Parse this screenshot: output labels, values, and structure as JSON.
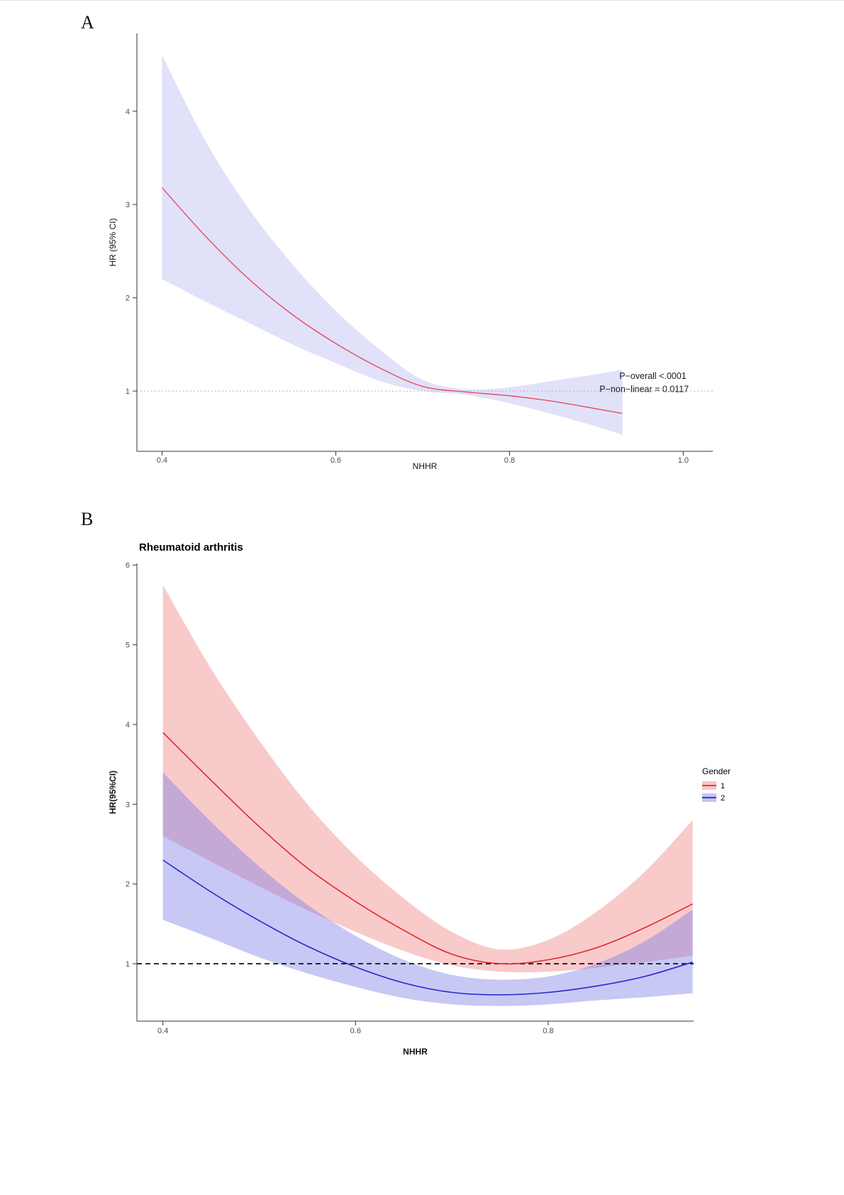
{
  "panels": [
    {
      "label": "A"
    },
    {
      "label": "B"
    }
  ],
  "chart_data": [
    {
      "id": "panel-a",
      "type": "line",
      "title": "",
      "xlabel": "NHHR",
      "ylabel": "HR (95% CI)",
      "xlim": [
        0.371,
        1.034
      ],
      "ylim": [
        0.354,
        4.835
      ],
      "xticks": [
        0.4,
        0.6,
        0.8,
        1.0
      ],
      "yticks": [
        1,
        2,
        3,
        4
      ],
      "grid": false,
      "ref_line": {
        "y": 1,
        "style": "dotted",
        "color": "#b5b5b5"
      },
      "x": [
        0.4,
        0.45,
        0.5,
        0.55,
        0.6,
        0.65,
        0.7,
        0.75,
        0.8,
        0.85,
        0.9,
        0.93
      ],
      "series": [
        {
          "name": "hr",
          "label": "HR",
          "color": "#e34257",
          "band_color": "#9a9aec",
          "band_opacity": 0.3,
          "values": [
            3.18,
            2.66,
            2.2,
            1.82,
            1.51,
            1.25,
            1.05,
            0.99,
            0.95,
            0.89,
            0.81,
            0.76
          ],
          "upper": [
            4.6,
            3.68,
            2.95,
            2.36,
            1.86,
            1.45,
            1.12,
            1.02,
            1.04,
            1.11,
            1.18,
            1.23
          ],
          "lower": [
            2.2,
            1.96,
            1.73,
            1.5,
            1.3,
            1.11,
            1.0,
            0.96,
            0.87,
            0.75,
            0.62,
            0.53
          ]
        }
      ],
      "annotations": [
        {
          "text": "P−overall <.0001",
          "x": 0.965,
          "y": 1.13
        },
        {
          "text": "P−non−linear = 0.0117",
          "x": 0.955,
          "y": 0.99
        }
      ]
    },
    {
      "id": "panel-b",
      "type": "line",
      "title": "Rheumatoid arthritis",
      "xlabel": "NHHR",
      "ylabel": "HR(95%CI)",
      "xlim": [
        0.373,
        0.951
      ],
      "ylim": [
        0.28,
        6.02
      ],
      "xticks": [
        0.4,
        0.6,
        0.8
      ],
      "yticks": [
        1,
        2,
        3,
        4,
        5,
        6
      ],
      "grid": false,
      "ref_line": {
        "y": 1,
        "style": "dashed",
        "color": "#111111"
      },
      "x": [
        0.4,
        0.45,
        0.5,
        0.55,
        0.6,
        0.65,
        0.7,
        0.75,
        0.8,
        0.85,
        0.9,
        0.95
      ],
      "series": [
        {
          "name": "gender-1",
          "label": "1",
          "color": "#e02a2a",
          "band_color": "#f08080",
          "band_opacity": 0.42,
          "values": [
            3.9,
            3.3,
            2.72,
            2.2,
            1.78,
            1.42,
            1.12,
            1.0,
            1.05,
            1.2,
            1.45,
            1.75
          ],
          "upper": [
            5.75,
            4.7,
            3.8,
            3.0,
            2.35,
            1.82,
            1.4,
            1.18,
            1.3,
            1.65,
            2.15,
            2.8
          ],
          "lower": [
            2.6,
            2.28,
            1.97,
            1.67,
            1.4,
            1.16,
            0.98,
            0.9,
            0.9,
            0.95,
            1.02,
            1.1
          ]
        },
        {
          "name": "gender-2",
          "label": "2",
          "color": "#2929cc",
          "band_color": "#7b7be8",
          "band_opacity": 0.42,
          "values": [
            2.3,
            1.9,
            1.54,
            1.22,
            0.96,
            0.76,
            0.64,
            0.61,
            0.64,
            0.72,
            0.84,
            1.02
          ],
          "upper": [
            3.4,
            2.78,
            2.22,
            1.74,
            1.35,
            1.05,
            0.86,
            0.8,
            0.84,
            1.0,
            1.28,
            1.68
          ],
          "lower": [
            1.55,
            1.32,
            1.08,
            0.88,
            0.71,
            0.57,
            0.49,
            0.47,
            0.49,
            0.54,
            0.58,
            0.63
          ]
        }
      ],
      "legend": {
        "title": "Gender",
        "position": "right",
        "items": [
          {
            "label": "1",
            "color": "#e02a2a",
            "band_color": "#f08080"
          },
          {
            "label": "2",
            "color": "#2929cc",
            "band_color": "#7b7be8"
          }
        ]
      },
      "annotations": []
    }
  ]
}
